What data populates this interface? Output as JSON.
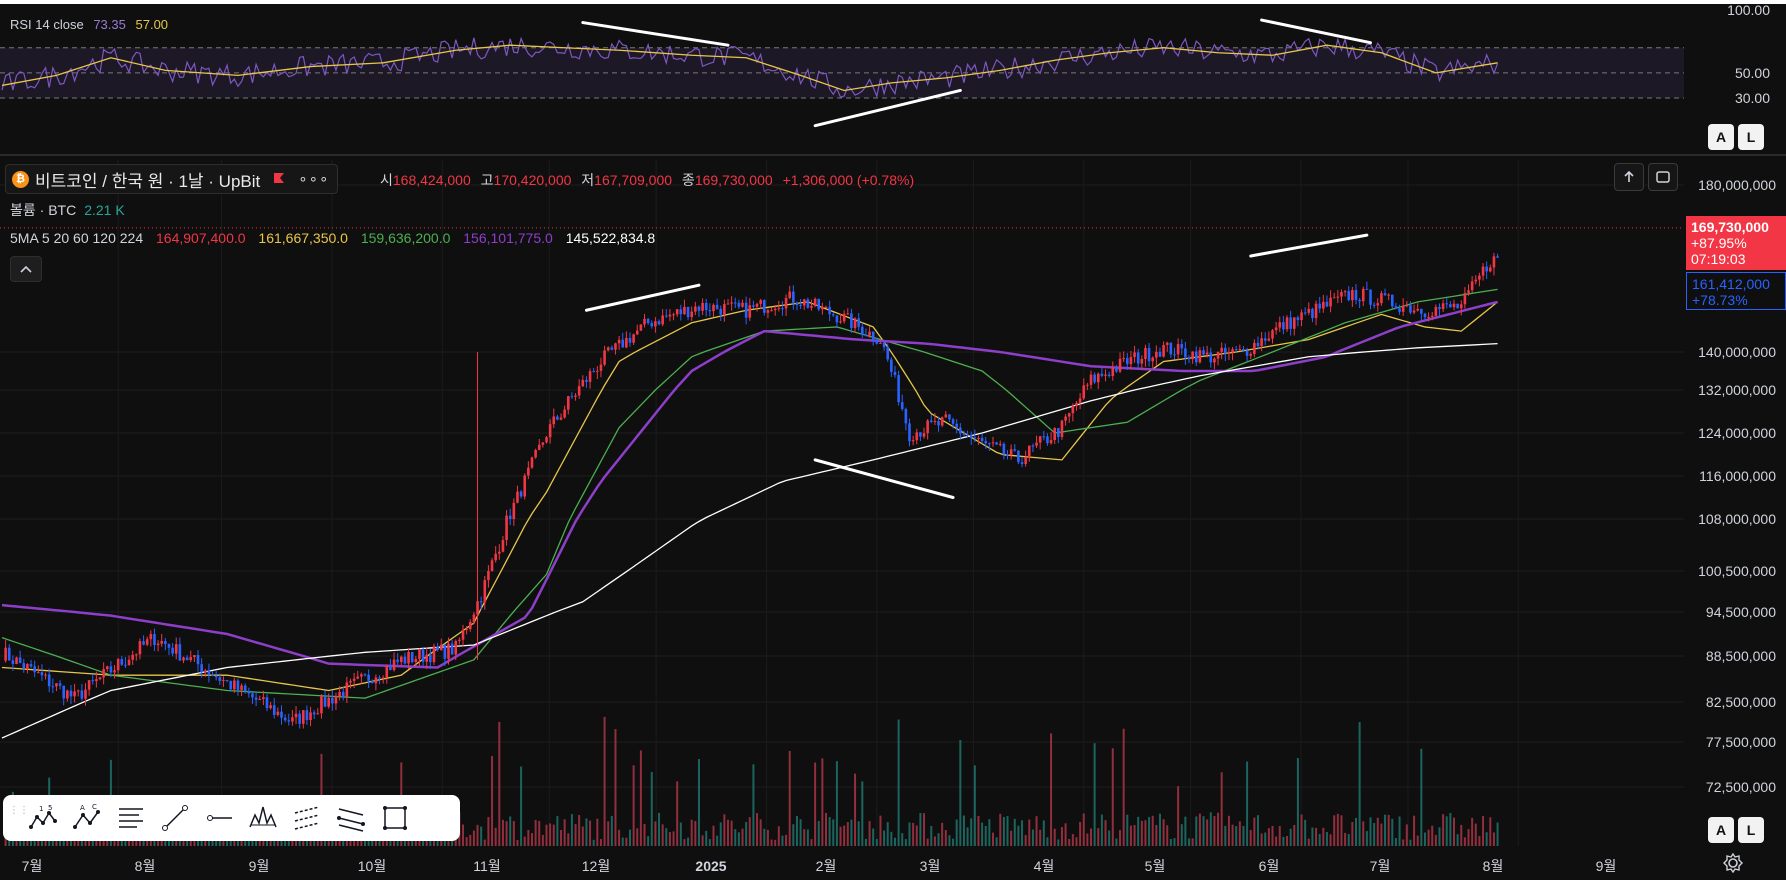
{
  "rsi": {
    "label": "RSI 14 close",
    "value": "73.35",
    "ma_value": "57.00",
    "levels": [
      "100.00",
      "50.00",
      "30.00"
    ]
  },
  "symbol": {
    "name": "비트코인 / 한국 원 · 1날 · UpBit"
  },
  "ohlc": {
    "open_label": "시",
    "open": "168,424,000",
    "high_label": "고",
    "high": "170,420,000",
    "low_label": "저",
    "low": "167,709,000",
    "close_label": "종",
    "close": "169,730,000",
    "change": "+1,306,000 (+0.78%)"
  },
  "volume": {
    "label": "볼륨 · BTC",
    "value": "2.21 K"
  },
  "ma": {
    "label": "5MA 5 20 60 120 224",
    "values": [
      "164,907,400.0",
      "161,667,350.0",
      "159,636,200.0",
      "156,101,775.0",
      "145,522,834.8"
    ]
  },
  "price_tags": {
    "last_price": "169,730,000",
    "last_change": "+87.95%",
    "countdown": "07:19:03",
    "ma_price": "161,412,000",
    "ma_change": "+78.73%"
  },
  "al_buttons": {
    "a": "A",
    "l": "L"
  },
  "chart_data": {
    "type": "candlestick",
    "symbol": "비트코인 / 한국 원",
    "interval": "1날",
    "exchange": "UpBit",
    "y_axis_labels": [
      "180,000,000",
      "169,730,000",
      "161,412,000",
      "140,000,000",
      "132,000,000",
      "124,000,000",
      "116,000,000",
      "108,000,000",
      "100,500,000",
      "94,500,000",
      "88,500,000",
      "82,500,000",
      "77,500,000",
      "72,500,000"
    ],
    "y_ticks": [
      180000000,
      140000000,
      132000000,
      124000000,
      116000000,
      108000000,
      100500000,
      94500000,
      88500000,
      82500000,
      77500000,
      72500000
    ],
    "x_axis_labels": [
      "7월",
      "8월",
      "9월",
      "10월",
      "11월",
      "12월",
      "2025",
      "2월",
      "3월",
      "4월",
      "5월",
      "6월",
      "7월",
      "8월",
      "9월"
    ],
    "rsi_levels": [
      100,
      70,
      50,
      30
    ],
    "price_path": [
      [
        0,
        89000000
      ],
      [
        20,
        83000000
      ],
      [
        42,
        91000000
      ],
      [
        62,
        85000000
      ],
      [
        80,
        80000000
      ],
      [
        98,
        85000000
      ],
      [
        110,
        88000000
      ],
      [
        125,
        89500000
      ],
      [
        132,
        97000000
      ],
      [
        150,
        124000000
      ],
      [
        165,
        138000000
      ],
      [
        178,
        147000000
      ],
      [
        192,
        151000000
      ],
      [
        205,
        150000000
      ],
      [
        218,
        153000000
      ],
      [
        232,
        148000000
      ],
      [
        242,
        143000000
      ],
      [
        250,
        124000000
      ],
      [
        260,
        126000000
      ],
      [
        270,
        122000000
      ],
      [
        280,
        119000000
      ],
      [
        292,
        125000000
      ],
      [
        300,
        134000000
      ],
      [
        310,
        138000000
      ],
      [
        320,
        141000000
      ],
      [
        332,
        139000000
      ],
      [
        342,
        140000000
      ],
      [
        352,
        146000000
      ],
      [
        362,
        150000000
      ],
      [
        372,
        154000000
      ],
      [
        382,
        152000000
      ],
      [
        392,
        150000000
      ],
      [
        402,
        151000000
      ],
      [
        410,
        162000000
      ]
    ],
    "ma_series": [
      {
        "name": "5",
        "color": "#f23645",
        "value": 164907400
      },
      {
        "name": "20",
        "color": "#e8c64a",
        "value": 161667350,
        "path": [
          [
            0,
            87000000
          ],
          [
            30,
            86000000
          ],
          [
            62,
            86000000
          ],
          [
            90,
            84000000
          ],
          [
            110,
            86000000
          ],
          [
            130,
            93000000
          ],
          [
            150,
            113000000
          ],
          [
            170,
            138000000
          ],
          [
            190,
            147000000
          ],
          [
            205,
            150000000
          ],
          [
            222,
            152000000
          ],
          [
            240,
            146000000
          ],
          [
            255,
            128000000
          ],
          [
            275,
            120000000
          ],
          [
            292,
            119000000
          ],
          [
            305,
            130000000
          ],
          [
            320,
            138000000
          ],
          [
            340,
            140000000
          ],
          [
            360,
            143000000
          ],
          [
            380,
            149000000
          ],
          [
            392,
            146000000
          ],
          [
            402,
            145000000
          ],
          [
            412,
            152000000
          ]
        ]
      },
      {
        "name": "60",
        "color": "#4caf50",
        "value": 159636200,
        "path": [
          [
            0,
            91000000
          ],
          [
            30,
            86000000
          ],
          [
            62,
            84000000
          ],
          [
            100,
            83000000
          ],
          [
            130,
            88000000
          ],
          [
            150,
            100000000
          ],
          [
            170,
            125000000
          ],
          [
            190,
            139000000
          ],
          [
            210,
            145000000
          ],
          [
            230,
            146000000
          ],
          [
            250,
            141000000
          ],
          [
            270,
            136000000
          ],
          [
            290,
            124000000
          ],
          [
            310,
            126000000
          ],
          [
            330,
            134000000
          ],
          [
            350,
            140000000
          ],
          [
            370,
            147000000
          ],
          [
            390,
            152000000
          ],
          [
            412,
            155000000
          ]
        ]
      },
      {
        "name": "120",
        "color": "#8e3fc9",
        "value": 156101775,
        "path": [
          [
            0,
            95500000
          ],
          [
            30,
            94000000
          ],
          [
            62,
            91500000
          ],
          [
            90,
            87500000
          ],
          [
            120,
            87000000
          ],
          [
            145,
            94000000
          ],
          [
            165,
            115000000
          ],
          [
            190,
            136000000
          ],
          [
            210,
            145000000
          ],
          [
            235,
            143000000
          ],
          [
            255,
            142000000
          ],
          [
            275,
            140000000
          ],
          [
            300,
            137000000
          ],
          [
            325,
            136000000
          ],
          [
            345,
            136000000
          ],
          [
            365,
            139000000
          ],
          [
            385,
            146000000
          ],
          [
            412,
            152000000
          ]
        ]
      },
      {
        "name": "224",
        "color": "#ffffff",
        "value": 145522834.8,
        "path": [
          [
            0,
            78000000
          ],
          [
            30,
            84000000
          ],
          [
            62,
            87000000
          ],
          [
            100,
            89000000
          ],
          [
            130,
            90000000
          ],
          [
            160,
            96000000
          ],
          [
            190,
            107000000
          ],
          [
            215,
            115000000
          ],
          [
            240,
            119000000
          ],
          [
            270,
            124000000
          ],
          [
            300,
            130000000
          ],
          [
            330,
            135000000
          ],
          [
            360,
            139000000
          ],
          [
            390,
            141000000
          ],
          [
            412,
            142000000
          ]
        ]
      }
    ],
    "rsi_ma_path": [
      [
        0,
        40
      ],
      [
        15,
        48
      ],
      [
        30,
        62
      ],
      [
        45,
        52
      ],
      [
        65,
        48
      ],
      [
        85,
        55
      ],
      [
        105,
        58
      ],
      [
        125,
        68
      ],
      [
        140,
        72
      ],
      [
        155,
        70
      ],
      [
        170,
        68
      ],
      [
        190,
        64
      ],
      [
        205,
        62
      ],
      [
        220,
        48
      ],
      [
        232,
        36
      ],
      [
        245,
        42
      ],
      [
        260,
        46
      ],
      [
        275,
        52
      ],
      [
        290,
        60
      ],
      [
        305,
        66
      ],
      [
        320,
        70
      ],
      [
        335,
        66
      ],
      [
        350,
        64
      ],
      [
        365,
        72
      ],
      [
        380,
        66
      ],
      [
        395,
        50
      ],
      [
        412,
        58
      ]
    ],
    "trendlines": [
      {
        "pane": "rsi",
        "points": [
          [
            160,
            90
          ],
          [
            200,
            72
          ]
        ]
      },
      {
        "pane": "rsi",
        "points": [
          [
            224,
            8
          ],
          [
            264,
            36
          ]
        ]
      },
      {
        "pane": "rsi",
        "points": [
          [
            347,
            92
          ],
          [
            377,
            74
          ]
        ]
      },
      {
        "pane": "price",
        "points": [
          [
            161,
            150000000
          ],
          [
            192,
            156000000
          ]
        ]
      },
      {
        "pane": "price",
        "points": [
          [
            224,
            119000000
          ],
          [
            262,
            112000000
          ]
        ]
      },
      {
        "pane": "price",
        "points": [
          [
            344,
            163000000
          ],
          [
            376,
            168000000
          ]
        ]
      }
    ]
  },
  "toolbar": {
    "tools": [
      "xabcd-pattern-icon",
      "abcd-pattern-icon",
      "fib-retracement-icon",
      "trend-line-icon",
      "horizontal-ray-icon",
      "head-shoulders-icon",
      "parallel-channel-icon",
      "regression-trend-icon",
      "rectangle-icon"
    ]
  }
}
